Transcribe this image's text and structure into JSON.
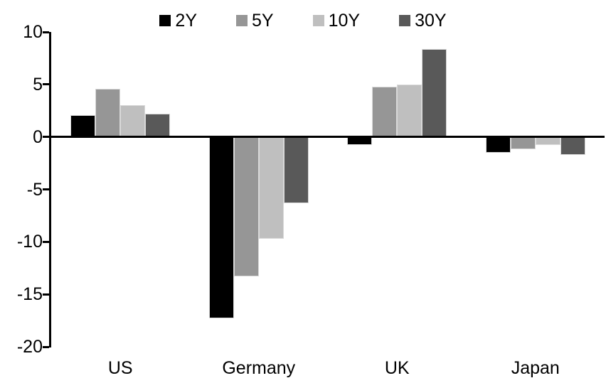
{
  "chart_data": {
    "type": "bar",
    "title": "",
    "categories": [
      "US",
      "Germany",
      "UK",
      "Japan"
    ],
    "series": [
      {
        "name": "2Y",
        "color": "#000000",
        "values": [
          2.1,
          -17.3,
          -0.8,
          -1.5
        ]
      },
      {
        "name": "5Y",
        "color": "#969696",
        "values": [
          4.6,
          -13.3,
          4.8,
          -1.2
        ]
      },
      {
        "name": "10Y",
        "color": "#bfbfbf",
        "values": [
          3.0,
          -9.7,
          5.0,
          -0.8
        ]
      },
      {
        "name": "30Y",
        "color": "#595959",
        "values": [
          2.2,
          -6.3,
          8.4,
          -1.7
        ]
      }
    ],
    "ylim": [
      -20,
      10
    ],
    "yticks": [
      10,
      5,
      0,
      -5,
      -10,
      -15,
      -20
    ],
    "xlabel": "",
    "ylabel": "",
    "legend_position": "top",
    "grid": false
  },
  "colors": {
    "axis": "#000000",
    "bar_border": "#d9d9d9",
    "background": "#ffffff"
  }
}
